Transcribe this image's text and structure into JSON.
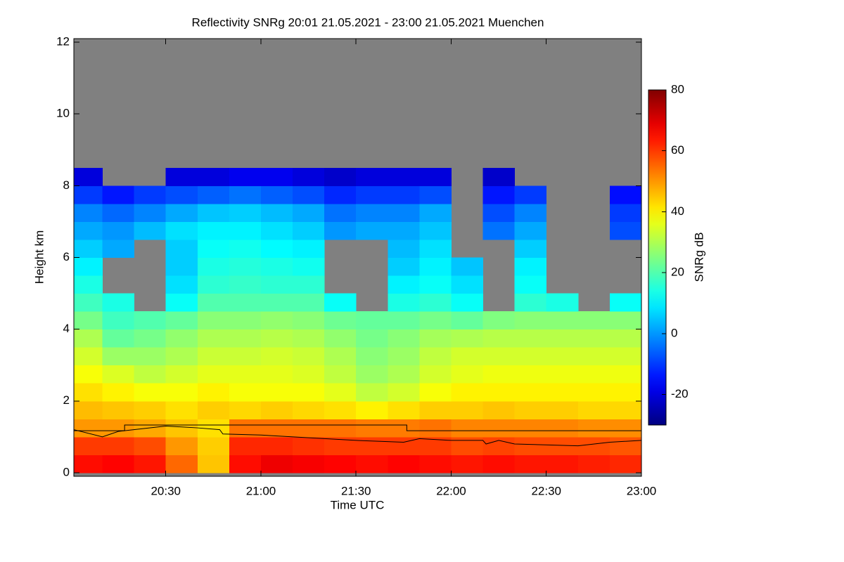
{
  "chart_data": {
    "type": "heatmap",
    "title": "Reflectivity SNRg   20:01 21.05.2021 - 23:00 21.05.2021 Muenchen",
    "x_label": "Time UTC",
    "y_label": "Height km",
    "colorbar_label": "SNRg dB",
    "colormap": "jet",
    "background": "#808080",
    "xlim": [
      "20:01",
      "23:00"
    ],
    "xticks": [
      "20:30",
      "21:00",
      "21:30",
      "22:00",
      "22:30",
      "23:00"
    ],
    "ylim": [
      -0.1,
      12.1
    ],
    "yticks": [
      0,
      2,
      4,
      6,
      8,
      10,
      12
    ],
    "clim": [
      -30,
      80
    ],
    "cticks": [
      -20,
      0,
      20,
      40,
      60,
      80
    ],
    "x_edges": [
      "20:01",
      "20:10",
      "20:20",
      "20:30",
      "20:40",
      "20:50",
      "21:00",
      "21:10",
      "21:20",
      "21:30",
      "21:40",
      "21:50",
      "22:00",
      "22:10",
      "22:20",
      "22:30",
      "22:40",
      "22:50",
      "23:00"
    ],
    "y_edges": [
      0,
      0.5,
      1,
      1.5,
      2,
      2.5,
      3,
      3.5,
      4,
      4.5,
      5,
      5.5,
      6,
      6.5,
      7,
      7.5,
      8,
      8.5
    ],
    "z": [
      [
        65,
        66,
        64,
        55,
        45,
        65,
        68,
        67,
        66,
        65,
        66,
        65,
        64,
        65,
        64,
        64,
        63,
        62
      ],
      [
        60,
        60,
        58,
        50,
        44,
        62,
        62,
        61,
        60,
        60,
        60,
        60,
        58,
        59,
        58,
        58,
        58,
        57
      ],
      [
        50,
        50,
        48,
        45,
        42,
        54,
        54,
        54,
        54,
        53,
        53,
        54,
        52,
        52,
        52,
        52,
        51,
        51
      ],
      [
        46,
        45,
        44,
        42,
        44,
        43,
        44,
        43,
        42,
        40,
        42,
        44,
        44,
        45,
        44,
        44,
        43,
        43
      ],
      [
        42,
        40,
        38,
        38,
        40,
        38,
        38,
        38,
        36,
        32,
        34,
        38,
        40,
        40,
        40,
        40,
        40,
        40
      ],
      [
        38,
        35,
        32,
        34,
        36,
        36,
        36,
        35,
        32,
        28,
        30,
        34,
        36,
        37,
        37,
        37,
        37,
        37
      ],
      [
        34,
        28,
        28,
        30,
        33,
        33,
        34,
        33,
        30,
        26,
        28,
        32,
        34,
        34,
        34,
        34,
        34,
        34
      ],
      [
        30,
        22,
        24,
        27,
        30,
        30,
        31,
        30,
        27,
        24,
        26,
        29,
        30,
        31,
        31,
        31,
        31,
        31
      ],
      [
        24,
        18,
        20,
        22,
        26,
        26,
        27,
        26,
        23,
        22,
        22,
        24,
        22,
        25,
        26,
        26,
        26,
        26
      ],
      [
        18,
        14,
        null,
        12,
        20,
        20,
        20,
        20,
        12,
        null,
        14,
        16,
        12,
        null,
        16,
        14,
        null,
        12
      ],
      [
        14,
        null,
        null,
        8,
        16,
        17,
        16,
        16,
        null,
        null,
        10,
        12,
        8,
        null,
        12,
        null,
        null,
        null
      ],
      [
        10,
        null,
        null,
        6,
        14,
        15,
        14,
        13,
        null,
        null,
        6,
        10,
        5,
        null,
        10,
        null,
        null,
        null
      ],
      [
        6,
        2,
        null,
        6,
        12,
        13,
        11,
        10,
        null,
        null,
        4,
        8,
        null,
        null,
        6,
        null,
        null,
        null
      ],
      [
        2,
        0,
        4,
        8,
        10,
        10,
        8,
        6,
        0,
        2,
        2,
        5,
        null,
        -4,
        2,
        null,
        null,
        -8
      ],
      [
        -2,
        -5,
        -2,
        2,
        5,
        6,
        4,
        2,
        -4,
        -2,
        -2,
        2,
        null,
        -8,
        -2,
        null,
        null,
        -10
      ],
      [
        -10,
        -14,
        -10,
        -8,
        -6,
        -4,
        -6,
        -8,
        -12,
        -10,
        -10,
        -8,
        null,
        -14,
        -10,
        null,
        null,
        -15
      ],
      [
        -20,
        null,
        null,
        -20,
        -20,
        -18,
        -18,
        -20,
        -22,
        -20,
        -20,
        -20,
        null,
        -22,
        null,
        null,
        null,
        null
      ]
    ],
    "lines": [
      {
        "color": "#000000",
        "x": [
          "20:01",
          "20:17",
          "20:17",
          "21:46",
          "21:46",
          "23:00"
        ],
        "y": [
          1.17,
          1.17,
          1.33,
          1.33,
          1.17,
          1.17
        ]
      },
      {
        "color": "#000000",
        "x": [
          "20:01",
          "20:10",
          "20:15",
          "20:30",
          "20:40",
          "20:47",
          "20:48",
          "21:00",
          "21:30",
          "21:45",
          "21:50",
          "22:00",
          "22:10",
          "22:11",
          "22:15",
          "22:20",
          "22:40",
          "22:50",
          "23:00"
        ],
        "y": [
          1.2,
          1.0,
          1.15,
          1.3,
          1.25,
          1.2,
          1.08,
          1.05,
          0.9,
          0.85,
          0.95,
          0.9,
          0.9,
          0.8,
          0.9,
          0.8,
          0.75,
          0.85,
          0.9
        ]
      }
    ]
  }
}
